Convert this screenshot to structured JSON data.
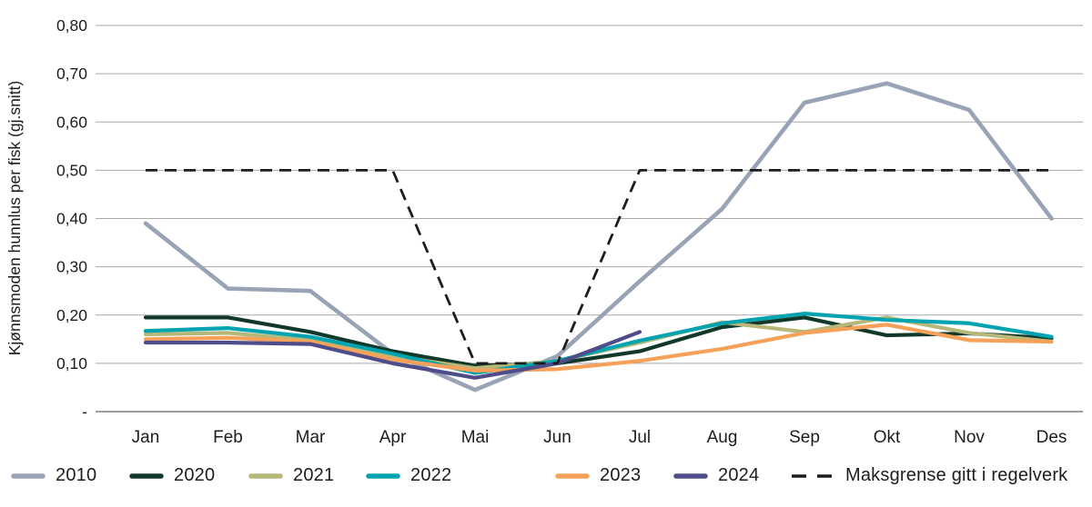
{
  "chart_data": {
    "type": "line",
    "title": "",
    "xlabel": "",
    "ylabel": "Kjønnsmoden hunnlus per fisk (gj.snitt)",
    "ylim": [
      0,
      0.8
    ],
    "grid": true,
    "legend_position": "bottom",
    "ytick_values": [
      0,
      0.1,
      0.2,
      0.3,
      0.4,
      0.5,
      0.6,
      0.7,
      0.8
    ],
    "ytick_labels": [
      "-",
      "0,10",
      "0,20",
      "0,30",
      "0,40",
      "0,50",
      "0,60",
      "0,70",
      "0,80"
    ],
    "categories": [
      "Jan",
      "Feb",
      "Mar",
      "Apr",
      "Mai",
      "Jun",
      "Jul",
      "Aug",
      "Sep",
      "Okt",
      "Nov",
      "Des"
    ],
    "series": [
      {
        "name": "2010",
        "color": "#98A4B5",
        "dashed": false,
        "values": [
          0.39,
          0.255,
          0.25,
          0.12,
          0.045,
          0.115,
          0.27,
          0.42,
          0.64,
          0.68,
          0.625,
          0.4
        ]
      },
      {
        "name": "2020",
        "color": "#12382A",
        "dashed": false,
        "values": [
          0.195,
          0.195,
          0.165,
          0.125,
          0.095,
          0.1,
          0.125,
          0.175,
          0.195,
          0.158,
          0.162,
          0.152
        ]
      },
      {
        "name": "2021",
        "color": "#B5B878",
        "dashed": false,
        "values": [
          0.16,
          0.163,
          0.148,
          0.115,
          0.09,
          0.105,
          0.143,
          0.185,
          0.165,
          0.195,
          0.163,
          0.145
        ]
      },
      {
        "name": "2022",
        "color": "#00A3AF",
        "dashed": false,
        "values": [
          0.167,
          0.173,
          0.155,
          0.12,
          0.08,
          0.105,
          0.147,
          0.183,
          0.203,
          0.19,
          0.183,
          0.155
        ]
      },
      {
        "name": "2023",
        "color": "#F6A159",
        "dashed": false,
        "values": [
          0.15,
          0.153,
          0.145,
          0.108,
          0.085,
          0.088,
          0.105,
          0.13,
          0.163,
          0.18,
          0.148,
          0.145
        ]
      },
      {
        "name": "2024",
        "color": "#4F4C8A",
        "dashed": false,
        "values": [
          0.143,
          0.143,
          0.14,
          0.1,
          0.07,
          0.1,
          0.165,
          null,
          null,
          null,
          null,
          null
        ]
      },
      {
        "name": "Maksgrense gitt i regelverk",
        "color": "#1D1D1B",
        "dashed": true,
        "values": [
          0.5,
          0.5,
          0.5,
          0.5,
          0.1,
          0.1,
          0.5,
          0.5,
          0.5,
          0.5,
          0.5,
          0.5
        ]
      }
    ]
  }
}
